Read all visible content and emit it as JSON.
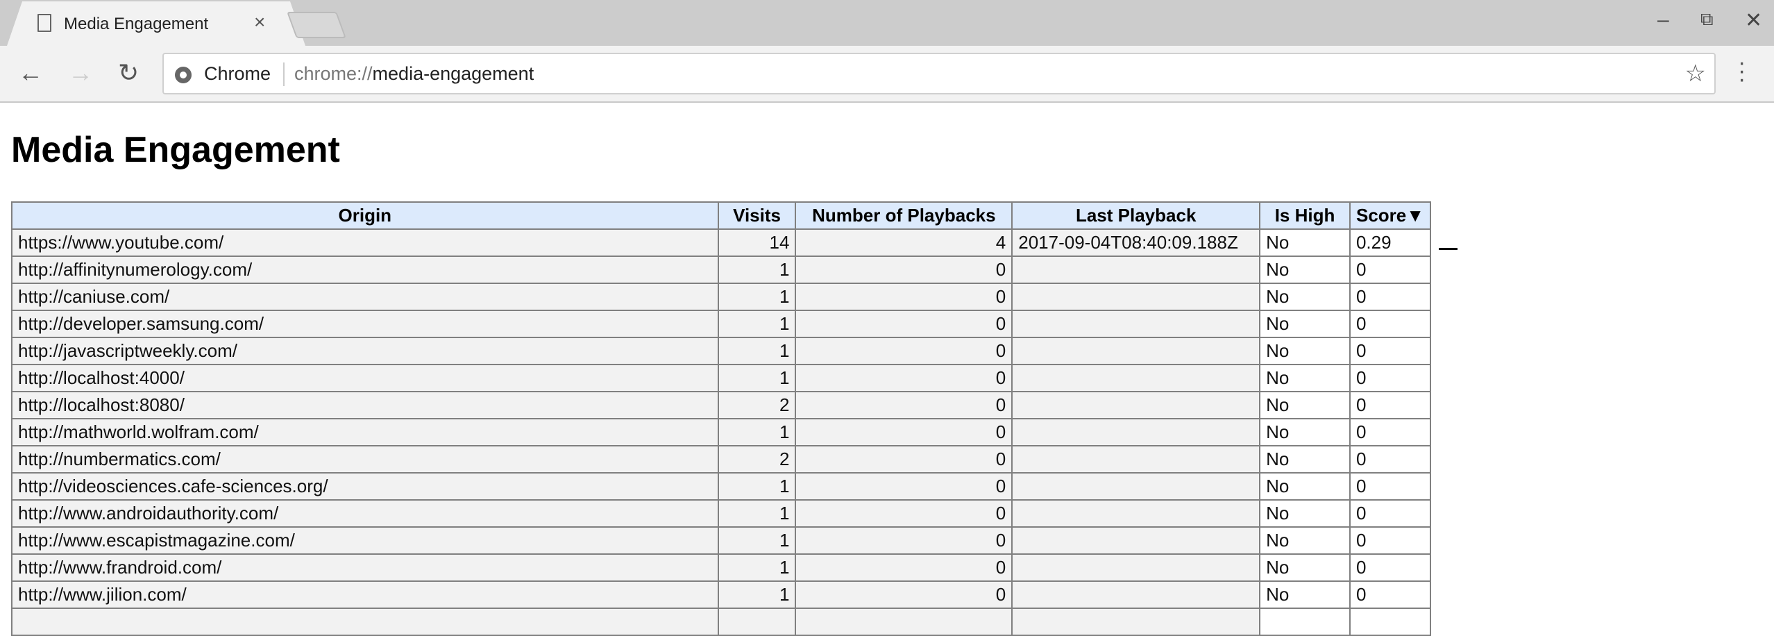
{
  "browser": {
    "tab_title": "Media Engagement",
    "omnibox_chip": "Chrome",
    "url_scheme": "chrome://",
    "url_path": "media-engagement"
  },
  "page": {
    "title": "Media Engagement"
  },
  "table": {
    "headers": [
      "Origin",
      "Visits",
      "Number of Playbacks",
      "Last Playback",
      "Is High",
      "Score▼"
    ],
    "rows": [
      [
        "https://www.youtube.com/",
        "14",
        "4",
        "2017-09-04T08:40:09.188Z",
        "No",
        "0.29"
      ],
      [
        "http://affinitynumerology.com/",
        "1",
        "0",
        "",
        "No",
        "0"
      ],
      [
        "http://caniuse.com/",
        "1",
        "0",
        "",
        "No",
        "0"
      ],
      [
        "http://developer.samsung.com/",
        "1",
        "0",
        "",
        "No",
        "0"
      ],
      [
        "http://javascriptweekly.com/",
        "1",
        "0",
        "",
        "No",
        "0"
      ],
      [
        "http://localhost:4000/",
        "1",
        "0",
        "",
        "No",
        "0"
      ],
      [
        "http://localhost:8080/",
        "2",
        "0",
        "",
        "No",
        "0"
      ],
      [
        "http://mathworld.wolfram.com/",
        "1",
        "0",
        "",
        "No",
        "0"
      ],
      [
        "http://numbermatics.com/",
        "2",
        "0",
        "",
        "No",
        "0"
      ],
      [
        "http://videosciences.cafe-sciences.org/",
        "1",
        "0",
        "",
        "No",
        "0"
      ],
      [
        "http://www.androidauthority.com/",
        "1",
        "0",
        "",
        "No",
        "0"
      ],
      [
        "http://www.escapistmagazine.com/",
        "1",
        "0",
        "",
        "No",
        "0"
      ],
      [
        "http://www.frandroid.com/",
        "1",
        "0",
        "",
        "No",
        "0"
      ],
      [
        "http://www.jilion.com/",
        "1",
        "0",
        "",
        "No",
        "0"
      ]
    ]
  }
}
